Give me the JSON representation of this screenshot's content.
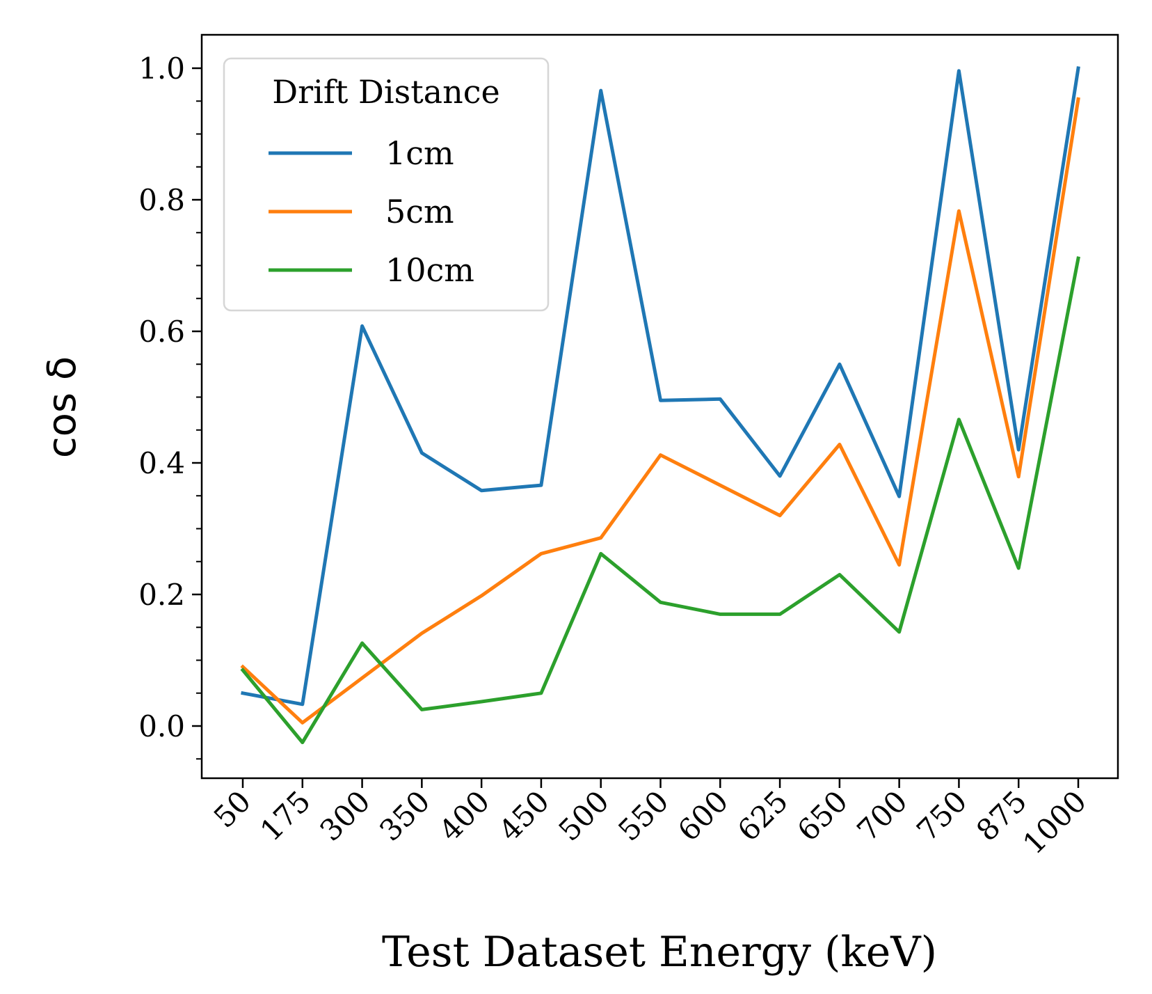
{
  "chart_data": {
    "type": "line",
    "title": "",
    "xlabel": "Test Dataset Energy (keV)",
    "ylabel": "cos δ",
    "categories": [
      "50",
      "175",
      "300",
      "350",
      "400",
      "450",
      "500",
      "550",
      "600",
      "625",
      "650",
      "700",
      "750",
      "875",
      "1000"
    ],
    "ylim": [
      -0.075,
      1.05
    ],
    "yticks": [
      "0.0",
      "0.2",
      "0.4",
      "0.6",
      "0.8",
      "1.0"
    ],
    "grid": false,
    "legend": {
      "title": "Drift Distance",
      "location": "upper-left"
    },
    "series": [
      {
        "name": "1cm",
        "color": "#1f77b4",
        "values": [
          0.05,
          0.033,
          0.608,
          0.415,
          0.358,
          0.366,
          0.966,
          0.495,
          0.497,
          0.38,
          0.55,
          0.349,
          0.996,
          0.42,
          1.0
        ]
      },
      {
        "name": "5cm",
        "color": "#ff7f0e",
        "values": [
          0.09,
          0.005,
          0.073,
          0.141,
          0.198,
          0.262,
          0.286,
          0.412,
          0.366,
          0.32,
          0.428,
          0.245,
          0.783,
          0.379,
          0.953
        ]
      },
      {
        "name": "10cm",
        "color": "#2ca02c",
        "values": [
          0.085,
          -0.025,
          0.126,
          0.025,
          0.037,
          0.05,
          0.262,
          0.188,
          0.17,
          0.17,
          0.23,
          0.143,
          0.466,
          0.24,
          0.711
        ]
      }
    ]
  }
}
